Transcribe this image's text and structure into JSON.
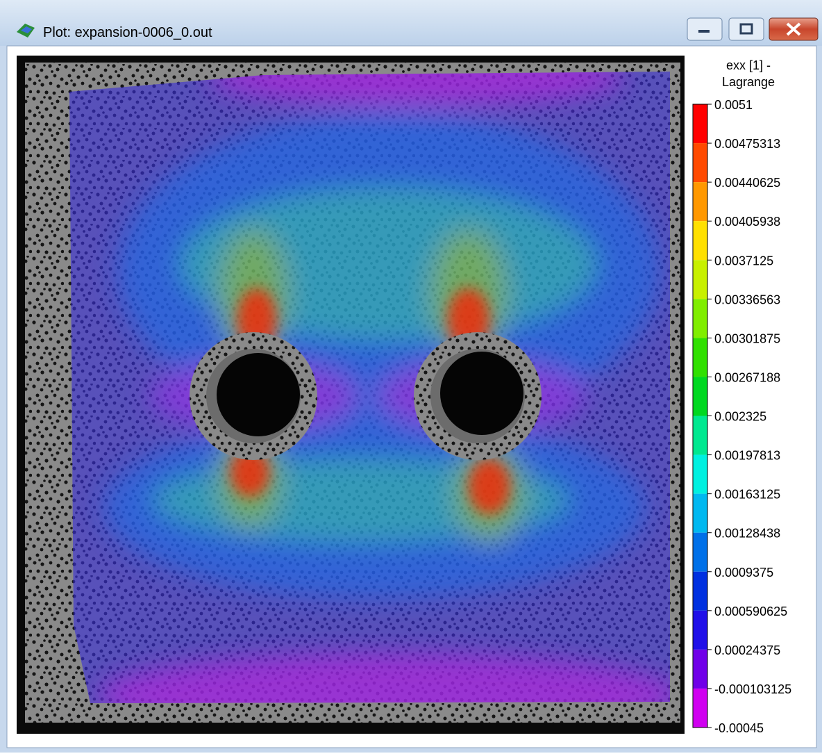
{
  "window": {
    "title": "Plot: expansion-0006_0.out"
  },
  "colorbar": {
    "title_lines": [
      "exx [1] -",
      "Lagrange"
    ],
    "range": [
      -0.00045,
      0.0051
    ],
    "ticks": [
      0.0051,
      0.00475313,
      0.00440625,
      0.00405938,
      0.0037125,
      0.00336563,
      0.00301875,
      0.00267188,
      0.002325,
      0.00197813,
      0.00163125,
      0.00128438,
      0.0009375,
      0.000590625,
      0.00024375,
      -0.000103125,
      -0.00045
    ],
    "colors": [
      "#ff0000",
      "#ff4a00",
      "#ff9800",
      "#ffe000",
      "#c8f000",
      "#80ee00",
      "#30e000",
      "#00d820",
      "#00e890",
      "#00f0e0",
      "#00b8f0",
      "#0070e8",
      "#0030e0",
      "#2010e8",
      "#7000e8",
      "#d000f0"
    ]
  }
}
